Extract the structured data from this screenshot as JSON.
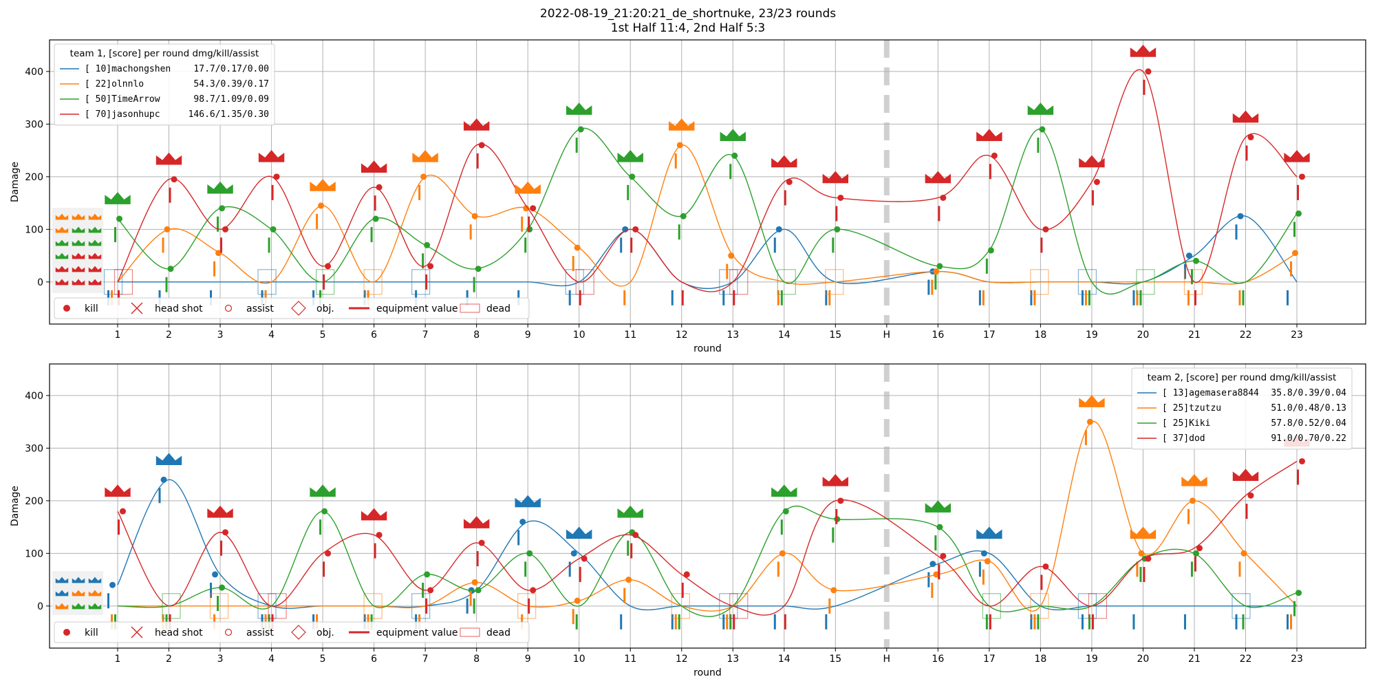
{
  "title": {
    "line1": "2022-08-19_21:20:21_de_shortnuke, 23/23 rounds",
    "line2": "1st Half 11:4, 2nd Half 5:3"
  },
  "colors": {
    "c0": "#1f77b4",
    "c1": "#ff7f0e",
    "c2": "#2ca02c",
    "c3": "#d62728"
  },
  "chart_data": [
    {
      "type": "line",
      "xlabel": "round",
      "ylabel": "Damage",
      "ylim": [
        -80,
        460
      ],
      "grid": true,
      "legend_title": "team 1, [score] per round dmg/kill/assist",
      "legend_position": "upper-left",
      "x_ticks": [
        "1",
        "2",
        "3",
        "4",
        "5",
        "6",
        "7",
        "8",
        "9",
        "10",
        "11",
        "12",
        "13",
        "14",
        "15",
        "H",
        "16",
        "17",
        "18",
        "19",
        "20",
        "21",
        "22",
        "23"
      ],
      "y_ticks": [
        0,
        100,
        200,
        300,
        400
      ],
      "marker_legend": [
        "kill",
        "head shot",
        "assist",
        "obj.",
        "equipment value",
        "dead"
      ],
      "series": [
        {
          "name": "[ 10]machongshen",
          "stats": "17.7/0.17/0.00",
          "color": "#1f77b4",
          "values": [
            0,
            0,
            0,
            0,
            0,
            0,
            0,
            0,
            0,
            0,
            100,
            0,
            0,
            100,
            0,
            20,
            0,
            0,
            0,
            0,
            50,
            125,
            0
          ]
        },
        {
          "name": "[ 22]olnnlo",
          "stats": "54.3/0.39/0.17",
          "color": "#ff7f0e",
          "values": [
            0,
            100,
            55,
            0,
            145,
            0,
            200,
            125,
            140,
            65,
            0,
            260,
            50,
            0,
            0,
            20,
            0,
            0,
            0,
            0,
            0,
            0,
            55
          ]
        },
        {
          "name": "[ 50]TimeArrow",
          "stats": "98.7/1.09/0.09",
          "color": "#2ca02c",
          "values": [
            120,
            25,
            140,
            100,
            0,
            120,
            70,
            25,
            100,
            290,
            200,
            125,
            240,
            0,
            100,
            30,
            60,
            290,
            0,
            0,
            40,
            0,
            130
          ]
        },
        {
          "name": "[ 70]jasonhupc",
          "stats": "146.6/1.35/0.30",
          "color": "#d62728",
          "values": [
            0,
            195,
            100,
            200,
            30,
            180,
            30,
            260,
            140,
            0,
            100,
            0,
            0,
            190,
            160,
            160,
            240,
            100,
            190,
            400,
            0,
            275,
            200
          ]
        }
      ]
    },
    {
      "type": "line",
      "xlabel": "round",
      "ylabel": "Damage",
      "ylim": [
        -80,
        460
      ],
      "grid": true,
      "legend_title": "team 2, [score] per round dmg/kill/assist",
      "legend_position": "upper-right",
      "x_ticks": [
        "1",
        "2",
        "3",
        "4",
        "5",
        "6",
        "7",
        "8",
        "9",
        "10",
        "11",
        "12",
        "13",
        "14",
        "15",
        "H",
        "16",
        "17",
        "18",
        "19",
        "20",
        "21",
        "22",
        "23"
      ],
      "y_ticks": [
        0,
        100,
        200,
        300,
        400
      ],
      "marker_legend": [
        "kill",
        "head shot",
        "assist",
        "obj.",
        "equipment value",
        "dead"
      ],
      "series": [
        {
          "name": "[ 13]agemasera8844",
          "stats": "35.8/0.39/0.04",
          "color": "#1f77b4",
          "values": [
            40,
            240,
            60,
            0,
            0,
            0,
            0,
            30,
            160,
            100,
            0,
            0,
            0,
            0,
            0,
            80,
            100,
            0,
            0,
            0,
            0,
            0,
            0
          ]
        },
        {
          "name": "[ 25]tzutzu",
          "stats": "51.0/0.48/0.13",
          "color": "#ff7f0e",
          "values": [
            0,
            0,
            0,
            0,
            0,
            0,
            0,
            45,
            0,
            10,
            50,
            0,
            0,
            100,
            30,
            60,
            85,
            0,
            350,
            100,
            200,
            100,
            0
          ]
        },
        {
          "name": "[ 25]Kiki",
          "stats": "57.8/0.52/0.04",
          "color": "#2ca02c",
          "values": [
            0,
            0,
            35,
            0,
            180,
            0,
            60,
            30,
            100,
            0,
            140,
            0,
            0,
            180,
            165,
            150,
            0,
            0,
            0,
            90,
            100,
            0,
            25
          ]
        },
        {
          "name": "[ 37]dod",
          "stats": "91.0/0.70/0.22",
          "color": "#d62728",
          "values": [
            180,
            0,
            140,
            0,
            100,
            135,
            30,
            120,
            30,
            90,
            135,
            60,
            0,
            0,
            200,
            95,
            0,
            75,
            0,
            90,
            110,
            210,
            275
          ]
        }
      ]
    }
  ]
}
